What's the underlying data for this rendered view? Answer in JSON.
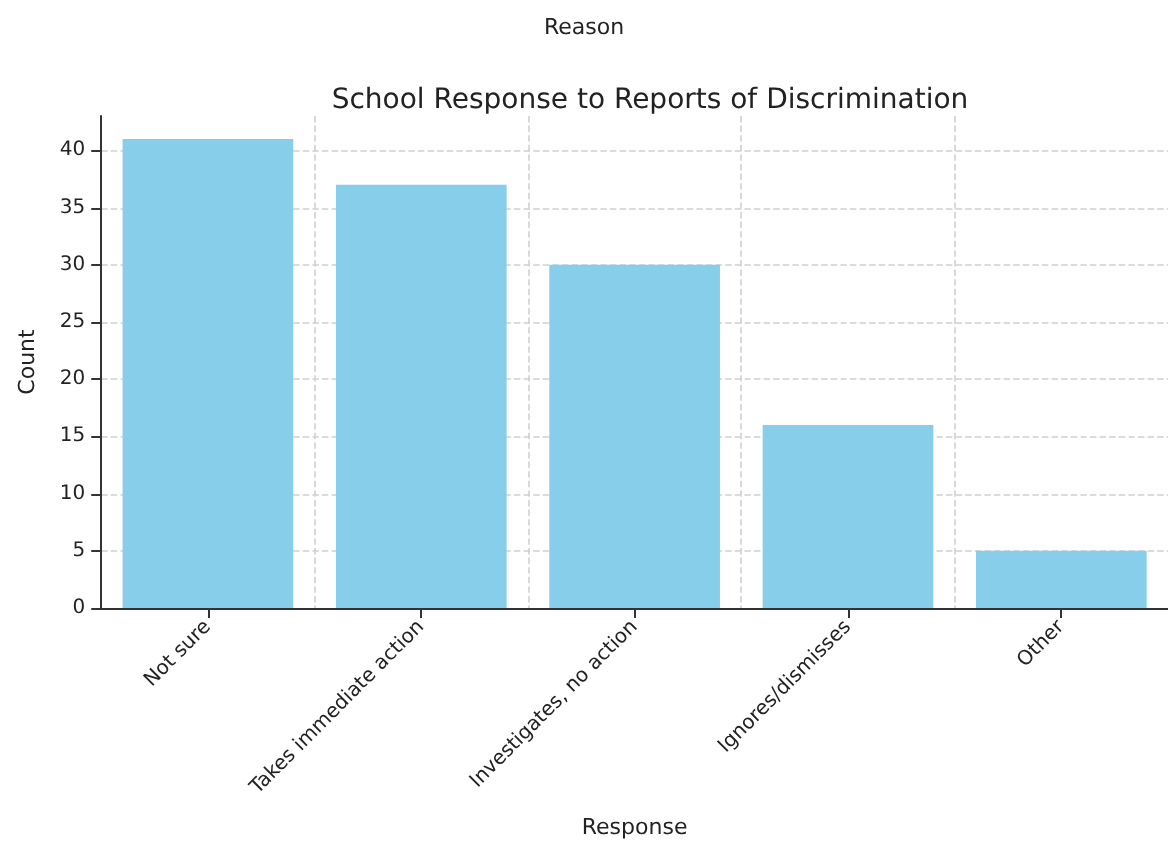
{
  "chart_data": {
    "type": "bar",
    "title": "School Response to Reports of Discrimination",
    "xlabel": "Response",
    "ylabel": "Count",
    "categories": [
      "Not sure",
      "Takes immediate action",
      "Investigates, no action",
      "Ignores/dismisses",
      "Other"
    ],
    "values": [
      41,
      37,
      30,
      16,
      5
    ],
    "color": "#87ceeb",
    "ylim": [
      0,
      43
    ],
    "yticks": [
      0,
      5,
      10,
      15,
      20,
      25,
      30,
      35,
      40
    ],
    "grid": true,
    "annotations": [
      "Reason"
    ]
  }
}
